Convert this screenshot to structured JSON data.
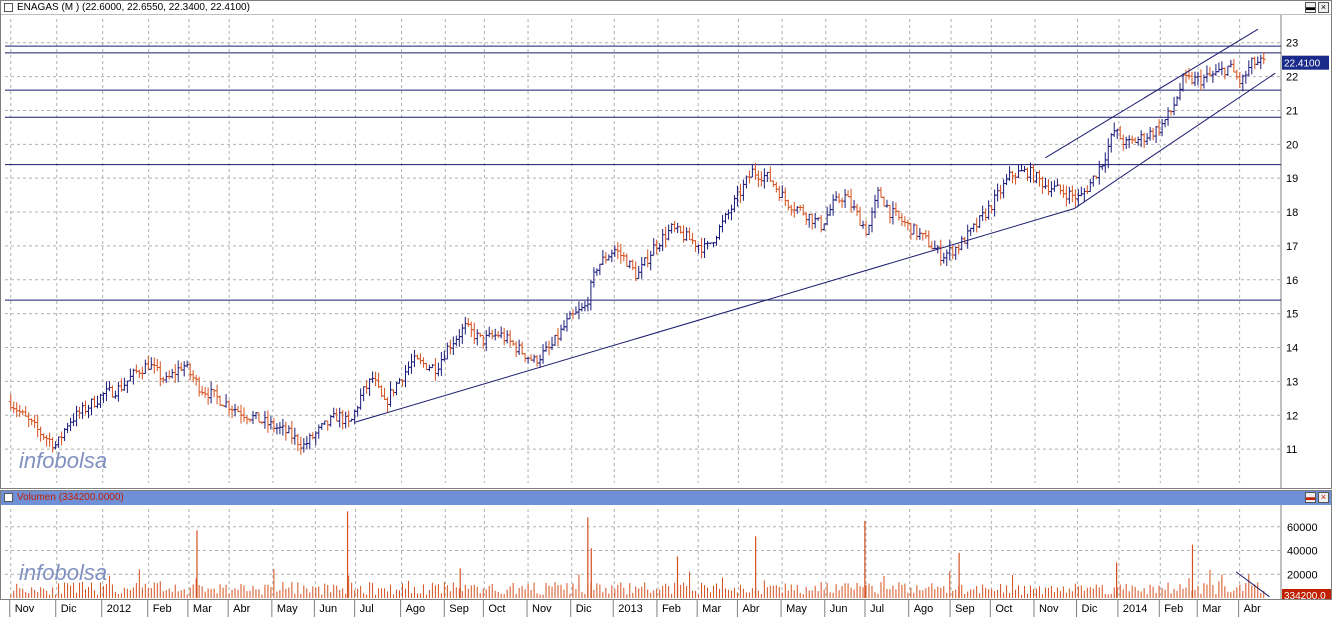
{
  "price_panel": {
    "title": "ENAGAS (M ) (22.6000, 22.6550, 22.3400, 22.4100)",
    "last_value_label": "22.4100",
    "watermark": "infobolsa"
  },
  "volume_panel": {
    "title": "Volumen (334200.0000)",
    "last_value_label": "334200.0",
    "watermark": "infobolsa"
  },
  "colors": {
    "up": "#1a1a7a",
    "down": "#d4501e",
    "line": "#1a1a6e",
    "grid": "#b0b0b0",
    "volume_title_bg": "#6f8fd6",
    "volume_bar": "#d4501e"
  },
  "chart_data": [
    {
      "type": "line",
      "y_range": [
        10,
        23.7
      ],
      "y_ticks": [
        11,
        12,
        13,
        14,
        15,
        16,
        17,
        18,
        19,
        20,
        21,
        22,
        23
      ],
      "x_months": [
        {
          "label": "Nov",
          "t": 0.0
        },
        {
          "label": "Dic",
          "t": 0.04
        },
        {
          "label": "2012",
          "t": 0.08
        },
        {
          "label": "Feb",
          "t": 0.12
        },
        {
          "label": "Mar",
          "t": 0.155
        },
        {
          "label": "Abr",
          "t": 0.19
        },
        {
          "label": "May",
          "t": 0.228
        },
        {
          "label": "Jun",
          "t": 0.265
        },
        {
          "label": "Jul",
          "t": 0.3
        },
        {
          "label": "Ago",
          "t": 0.34
        },
        {
          "label": "Sep",
          "t": 0.378
        },
        {
          "label": "Oct",
          "t": 0.412
        },
        {
          "label": "Nov",
          "t": 0.45
        },
        {
          "label": "Dic",
          "t": 0.488
        },
        {
          "label": "2013",
          "t": 0.525
        },
        {
          "label": "Feb",
          "t": 0.563
        },
        {
          "label": "Mar",
          "t": 0.598
        },
        {
          "label": "Abr",
          "t": 0.633
        },
        {
          "label": "May",
          "t": 0.671
        },
        {
          "label": "Jun",
          "t": 0.709
        },
        {
          "label": "Jul",
          "t": 0.744
        },
        {
          "label": "Ago",
          "t": 0.782
        },
        {
          "label": "Sep",
          "t": 0.818
        },
        {
          "label": "Oct",
          "t": 0.853
        },
        {
          "label": "Nov",
          "t": 0.891
        },
        {
          "label": "Dic",
          "t": 0.928
        },
        {
          "label": "2014",
          "t": 0.964
        },
        {
          "label": "Feb",
          "t": 1.0
        },
        {
          "label": "Mar",
          "t": 1.033
        },
        {
          "label": "Abr",
          "t": 1.069
        }
      ],
      "price_path": [
        [
          0.0,
          12.4
        ],
        [
          0.01,
          12.0
        ],
        [
          0.025,
          11.5
        ],
        [
          0.04,
          11.1
        ],
        [
          0.05,
          11.8
        ],
        [
          0.065,
          12.2
        ],
        [
          0.08,
          12.6
        ],
        [
          0.095,
          12.8
        ],
        [
          0.11,
          13.3
        ],
        [
          0.12,
          13.5
        ],
        [
          0.135,
          13.0
        ],
        [
          0.15,
          13.5
        ],
        [
          0.165,
          12.8
        ],
        [
          0.18,
          12.5
        ],
        [
          0.2,
          12.1
        ],
        [
          0.22,
          11.8
        ],
        [
          0.24,
          11.5
        ],
        [
          0.255,
          11.1
        ],
        [
          0.27,
          11.6
        ],
        [
          0.285,
          12.0
        ],
        [
          0.295,
          11.7
        ],
        [
          0.305,
          12.6
        ],
        [
          0.315,
          13.1
        ],
        [
          0.325,
          12.3
        ],
        [
          0.335,
          12.9
        ],
        [
          0.35,
          13.6
        ],
        [
          0.37,
          13.4
        ],
        [
          0.38,
          14.0
        ],
        [
          0.395,
          14.6
        ],
        [
          0.41,
          14.2
        ],
        [
          0.425,
          14.4
        ],
        [
          0.44,
          14.0
        ],
        [
          0.455,
          13.6
        ],
        [
          0.47,
          14.0
        ],
        [
          0.485,
          14.8
        ],
        [
          0.5,
          15.2
        ],
        [
          0.51,
          16.4
        ],
        [
          0.525,
          16.9
        ],
        [
          0.535,
          16.6
        ],
        [
          0.545,
          16.1
        ],
        [
          0.56,
          17.0
        ],
        [
          0.575,
          17.5
        ],
        [
          0.59,
          17.2
        ],
        [
          0.605,
          16.9
        ],
        [
          0.62,
          17.7
        ],
        [
          0.635,
          18.6
        ],
        [
          0.645,
          19.2
        ],
        [
          0.66,
          19.0
        ],
        [
          0.675,
          18.3
        ],
        [
          0.69,
          18.0
        ],
        [
          0.705,
          17.6
        ],
        [
          0.715,
          18.2
        ],
        [
          0.725,
          18.5
        ],
        [
          0.735,
          18.0
        ],
        [
          0.745,
          17.4
        ],
        [
          0.755,
          18.6
        ],
        [
          0.765,
          18.0
        ],
        [
          0.78,
          17.6
        ],
        [
          0.795,
          17.2
        ],
        [
          0.81,
          16.7
        ],
        [
          0.825,
          17.0
        ],
        [
          0.84,
          17.6
        ],
        [
          0.855,
          18.3
        ],
        [
          0.87,
          19.1
        ],
        [
          0.885,
          19.2
        ],
        [
          0.9,
          18.8
        ],
        [
          0.915,
          18.6
        ],
        [
          0.93,
          18.4
        ],
        [
          0.94,
          18.9
        ],
        [
          0.95,
          19.5
        ],
        [
          0.96,
          20.4
        ],
        [
          0.97,
          20.0
        ],
        [
          0.985,
          20.2
        ],
        [
          1.0,
          20.5
        ],
        [
          1.01,
          21.0
        ],
        [
          1.02,
          21.9
        ],
        [
          1.035,
          21.9
        ],
        [
          1.05,
          22.1
        ],
        [
          1.06,
          22.3
        ],
        [
          1.07,
          21.8
        ],
        [
          1.08,
          22.4
        ],
        [
          1.09,
          22.41
        ]
      ],
      "horizontal_levels": [
        22.9,
        22.7,
        21.6,
        20.8,
        19.4,
        15.4
      ],
      "trendlines": [
        {
          "from": [
            0.3,
            11.8
          ],
          "to": [
            0.925,
            18.1
          ]
        },
        {
          "from": [
            0.925,
            18.1
          ],
          "to": [
            1.1,
            22.1
          ]
        },
        {
          "from": [
            0.9,
            19.6
          ],
          "to": [
            1.085,
            23.4
          ]
        }
      ]
    },
    {
      "type": "bar",
      "title": "Volumen (334200.0000)",
      "y_range": [
        0,
        75000
      ],
      "y_ticks": [
        20000,
        40000,
        60000
      ],
      "y_tick_labels": [
        "20000",
        "40000",
        "60000"
      ],
      "spikes": [
        {
          "t": 0.162,
          "v": 57000
        },
        {
          "t": 0.293,
          "v": 73000
        },
        {
          "t": 0.502,
          "v": 68000
        },
        {
          "t": 0.505,
          "v": 42000
        },
        {
          "t": 0.648,
          "v": 52000
        },
        {
          "t": 0.743,
          "v": 65000
        },
        {
          "t": 0.825,
          "v": 38000
        },
        {
          "t": 1.028,
          "v": 45000
        },
        {
          "t": 0.962,
          "v": 30000
        },
        {
          "t": 0.58,
          "v": 35000
        },
        {
          "t": 0.391,
          "v": 25000
        }
      ],
      "base_volume": 9000
    }
  ]
}
